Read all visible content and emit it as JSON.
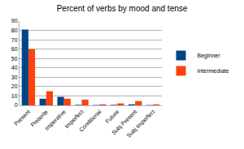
{
  "chart_data": {
    "type": "bar",
    "title": "Percent of verbs by mood and tense",
    "categories": [
      "Present",
      "Preterite",
      "Imperative",
      "Imperfect",
      "Conditional",
      "Future",
      "Subj Present",
      "Subj Imperfect"
    ],
    "series": [
      {
        "name": "Beginner",
        "color": "#004586",
        "values": [
          81,
          7,
          9,
          0.5,
          0.3,
          0.5,
          1,
          0.3
        ]
      },
      {
        "name": "Intermediate",
        "color": "#ff420e",
        "values": [
          60,
          15,
          7,
          6,
          1,
          2,
          4.5,
          1
        ]
      }
    ],
    "ylim": [
      0,
      90
    ],
    "yticks": [
      0,
      10,
      20,
      30,
      40,
      50,
      60,
      70,
      80,
      90
    ],
    "grid": true,
    "legend": "right"
  }
}
